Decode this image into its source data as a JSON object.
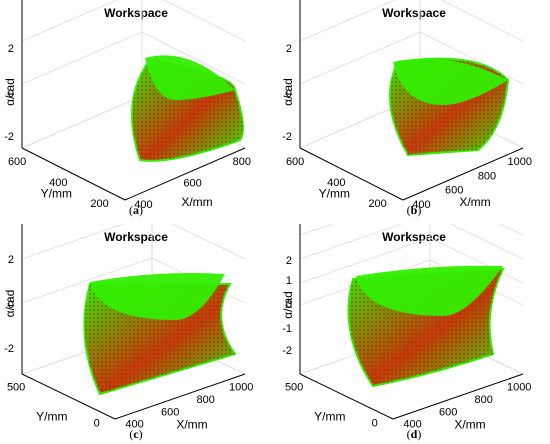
{
  "colors": {
    "volume_light": "#33ee00",
    "volume_dark": "#c83a08",
    "axis": "#000000",
    "grid": "#dddddd"
  },
  "chart_data": [
    {
      "id": "a",
      "type": "3d-surface",
      "title": "Workspace",
      "caption": "a",
      "xlabel": "X/mm",
      "ylabel": "Y/mm",
      "zlabel": "α/rad",
      "xticks": [
        "400",
        "600",
        "800"
      ],
      "yticks": [
        "200",
        "400",
        "600"
      ],
      "zticks": [
        "2",
        "0",
        "-2"
      ],
      "xlim": [
        400,
        900
      ],
      "ylim": [
        200,
        650
      ],
      "zlim": [
        -2,
        2
      ],
      "grid": true
    },
    {
      "id": "b",
      "type": "3d-surface",
      "title": "Workspace",
      "caption": "b",
      "xlabel": "X/mm",
      "ylabel": "Y/mm",
      "zlabel": "α/rad",
      "xticks": [
        "400",
        "600",
        "800",
        "1000"
      ],
      "yticks": [
        "200",
        "400",
        "600"
      ],
      "zticks": [
        "2",
        "0",
        "-2"
      ],
      "xlim": [
        300,
        1000
      ],
      "ylim": [
        200,
        650
      ],
      "zlim": [
        -2,
        2
      ],
      "grid": true
    },
    {
      "id": "c",
      "type": "3d-surface",
      "title": "Workspace",
      "caption": "c",
      "xlabel": "X/mm",
      "ylabel": "Y/mm",
      "zlabel": "α/rad",
      "xticks": [
        "400",
        "600",
        "800",
        "1000"
      ],
      "yticks": [
        "0",
        "500"
      ],
      "zticks": [
        "2",
        "0",
        "-2"
      ],
      "xlim": [
        300,
        1000
      ],
      "ylim": [
        0,
        600
      ],
      "zlim": [
        -2,
        2
      ],
      "grid": true
    },
    {
      "id": "d",
      "type": "3d-surface",
      "title": "Workspace",
      "caption": "d",
      "xlabel": "X/mm",
      "ylabel": "Y/mm",
      "zlabel": "α/rad",
      "xticks": [
        "400",
        "600",
        "800",
        "1000"
      ],
      "yticks": [
        "0",
        "500"
      ],
      "zticks": [
        "2",
        "1",
        "0",
        "-1",
        "-2"
      ],
      "xlim": [
        300,
        1000
      ],
      "ylim": [
        0,
        600
      ],
      "zlim": [
        -2,
        2
      ],
      "grid": true
    }
  ]
}
